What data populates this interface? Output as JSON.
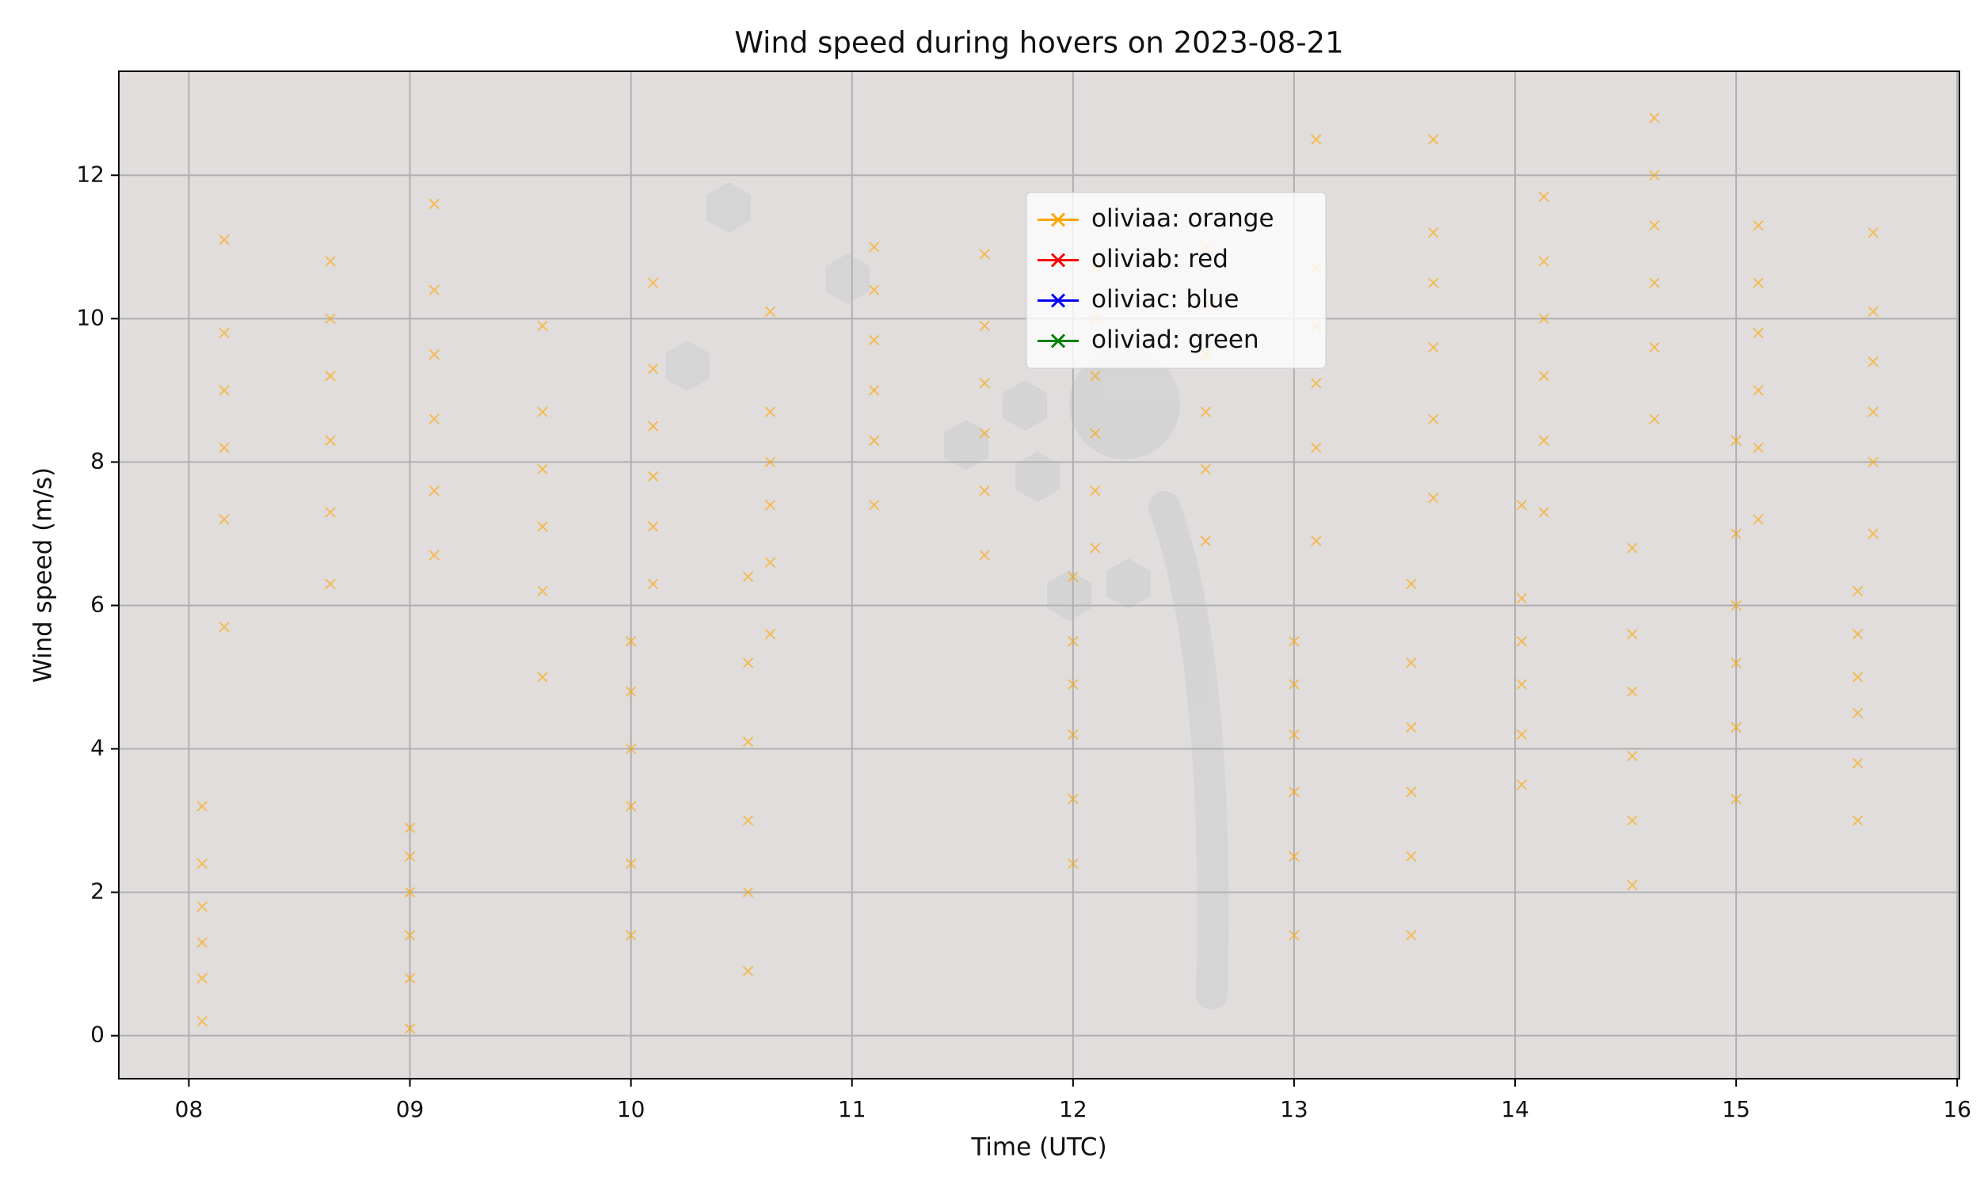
{
  "chart_data": {
    "type": "scatter",
    "title": "Wind speed during hovers on 2023-08-21",
    "x_label": "Time (UTC)",
    "y_label": "Wind speed (m/s)",
    "xlim": [
      7.683,
      16.01
    ],
    "ylim": [
      -0.6,
      13.45
    ],
    "xticks": [
      {
        "value": 8,
        "label": "08"
      },
      {
        "value": 9,
        "label": "09"
      },
      10,
      11,
      12,
      13,
      14,
      15,
      16
    ],
    "yticks": [
      0,
      2,
      4,
      6,
      8,
      10,
      12
    ],
    "grid": true,
    "legend_position": "upper center",
    "series": [
      {
        "name": "oliviaa: orange",
        "color": "#ffa500",
        "x": [
          8.06,
          8.06,
          8.06,
          8.06,
          8.06,
          8.06,
          8.16,
          8.16,
          8.16,
          8.16,
          8.16,
          8.16,
          8.64,
          8.64,
          8.64,
          8.64,
          8.64,
          8.64,
          9.0,
          9.0,
          9.0,
          9.0,
          9.0,
          9.0,
          9.11,
          9.11,
          9.11,
          9.11,
          9.11,
          9.11,
          9.6,
          9.6,
          9.6,
          9.6,
          9.6,
          9.6,
          10.0,
          10.0,
          10.0,
          10.0,
          10.0,
          10.0,
          10.1,
          10.1,
          10.1,
          10.1,
          10.1,
          10.1,
          10.53,
          10.53,
          10.53,
          10.53,
          10.53,
          10.53,
          10.63,
          10.63,
          10.63,
          10.63,
          10.63,
          10.63,
          11.1,
          11.1,
          11.1,
          11.1,
          11.1,
          11.1,
          11.6,
          11.6,
          11.6,
          11.6,
          11.6,
          11.6,
          12.0,
          12.0,
          12.0,
          12.0,
          12.0,
          12.0,
          12.1,
          12.1,
          12.1,
          12.1,
          12.1,
          12.1,
          12.6,
          12.6,
          12.6,
          12.6,
          12.6,
          12.6,
          13.0,
          13.0,
          13.0,
          13.0,
          13.0,
          13.0,
          13.1,
          13.1,
          13.1,
          13.1,
          13.1,
          13.1,
          13.53,
          13.53,
          13.53,
          13.53,
          13.53,
          13.53,
          13.63,
          13.63,
          13.63,
          13.63,
          13.63,
          13.63,
          14.03,
          14.03,
          14.03,
          14.03,
          14.03,
          14.03,
          14.13,
          14.13,
          14.13,
          14.13,
          14.13,
          14.13,
          14.53,
          14.53,
          14.53,
          14.53,
          14.53,
          14.53,
          14.63,
          14.63,
          14.63,
          14.63,
          14.63,
          14.63,
          15.0,
          15.0,
          15.0,
          15.0,
          15.0,
          15.0,
          15.1,
          15.1,
          15.1,
          15.1,
          15.1,
          15.1,
          15.55,
          15.55,
          15.55,
          15.55,
          15.55,
          15.55,
          15.62,
          15.62,
          15.62,
          15.62,
          15.62,
          15.62
        ],
        "values": [
          0.2,
          0.8,
          1.3,
          1.8,
          2.4,
          3.2,
          5.7,
          7.2,
          8.2,
          9.0,
          9.8,
          11.1,
          6.3,
          7.3,
          8.3,
          9.2,
          10.0,
          10.8,
          0.1,
          0.8,
          1.4,
          2.0,
          2.5,
          2.9,
          6.7,
          7.6,
          8.6,
          9.5,
          10.4,
          11.6,
          5.0,
          6.2,
          7.1,
          7.9,
          8.7,
          9.9,
          1.4,
          2.4,
          3.2,
          4.0,
          4.8,
          5.5,
          6.3,
          7.1,
          7.8,
          8.5,
          9.3,
          10.5,
          0.9,
          2.0,
          3.0,
          4.1,
          5.2,
          6.4,
          5.6,
          6.6,
          7.4,
          8.0,
          8.7,
          10.1,
          7.4,
          8.3,
          9.0,
          9.7,
          10.4,
          11.0,
          6.7,
          7.6,
          8.4,
          9.1,
          9.9,
          10.9,
          2.4,
          3.3,
          4.2,
          4.9,
          5.5,
          6.4,
          6.8,
          7.6,
          8.4,
          9.2,
          10.0,
          10.7,
          6.9,
          7.9,
          8.7,
          9.5,
          10.2,
          11.0,
          1.4,
          2.5,
          3.4,
          4.2,
          4.9,
          5.5,
          6.9,
          8.2,
          9.1,
          9.9,
          10.7,
          12.5,
          1.4,
          2.5,
          3.4,
          4.3,
          5.2,
          6.3,
          7.5,
          8.6,
          9.6,
          10.5,
          11.2,
          12.5,
          3.5,
          4.2,
          4.9,
          5.5,
          6.1,
          7.4,
          7.3,
          8.3,
          9.2,
          10.0,
          10.8,
          11.7,
          2.1,
          3.0,
          3.9,
          4.8,
          5.6,
          6.8,
          8.6,
          9.6,
          10.5,
          11.3,
          12.0,
          12.8,
          3.3,
          4.3,
          5.2,
          6.0,
          7.0,
          8.3,
          7.2,
          8.2,
          9.0,
          9.8,
          10.5,
          11.3,
          3.0,
          3.8,
          4.5,
          5.0,
          5.6,
          6.2,
          7.0,
          8.0,
          8.7,
          9.4,
          10.1,
          11.2
        ]
      },
      {
        "name": "oliviab: red",
        "color": "#ff0000",
        "x": [],
        "values": []
      },
      {
        "name": "oliviac: blue",
        "color": "#0000ff",
        "x": [],
        "values": []
      },
      {
        "name": "oliviad: green",
        "color": "#008000",
        "x": [],
        "values": []
      }
    ]
  }
}
